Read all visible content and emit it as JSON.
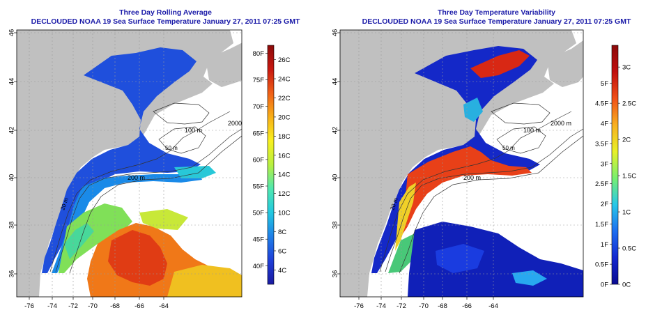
{
  "panels": [
    {
      "title": "Three Day Rolling Average",
      "subtitle": "DECLOUDED NOAA 19 Sea Surface Temperature January 27, 2011 07:25 GMT",
      "x_ticks": [
        "-76",
        "-74",
        "-72",
        "-70",
        "-68",
        "-66",
        "-64"
      ],
      "y_ticks": [
        "36",
        "38",
        "40",
        "42",
        "44",
        "46"
      ],
      "contour_labels": [
        "200 m",
        "100 m",
        "2000 m",
        "50 m",
        "20 m"
      ],
      "colorbar": {
        "type": "temperature",
        "range_c": [
          2.5,
          27.5
        ],
        "stops": [
          "#1a1aa0",
          "#1f3fd8",
          "#1f7fe8",
          "#22c8e0",
          "#4fe8b0",
          "#b8f040",
          "#f8f020",
          "#f8b018",
          "#f06018",
          "#c81810",
          "#8c0a0a"
        ],
        "left_labels": [
          "40F",
          "45F",
          "50F",
          "55F",
          "60F",
          "65F",
          "70F",
          "75F",
          "80F"
        ],
        "right_labels": [
          "4C",
          "6C",
          "8C",
          "10C",
          "12C",
          "14C",
          "16C",
          "18C",
          "20C",
          "22C",
          "24C",
          "26C"
        ]
      }
    },
    {
      "title": "Three Day Temperature Variability",
      "subtitle": "DECLOUDED NOAA 19 Sea Surface Temperature January 27, 2011 07:25 GMT",
      "x_ticks": [
        "-76",
        "-74",
        "-72",
        "-70",
        "-68",
        "-66",
        "-64"
      ],
      "y_ticks": [
        "36",
        "38",
        "40",
        "42",
        "44",
        "46"
      ],
      "contour_labels": [
        "200 m",
        "100 m",
        "2000 m",
        "50 m",
        "20 m"
      ],
      "colorbar": {
        "type": "variability",
        "range_c": [
          0,
          3.3
        ],
        "stops": [
          "#0a0a90",
          "#1428d0",
          "#1e6ef0",
          "#28c8e8",
          "#78f070",
          "#e8f028",
          "#f8b020",
          "#f05018",
          "#c01010",
          "#8c0a0a"
        ],
        "left_labels": [
          "0F",
          "0.5F",
          "1F",
          "1.5F",
          "2F",
          "2.5F",
          "3F",
          "3.5F",
          "4F",
          "4.5F",
          "5F"
        ],
        "right_labels": [
          "0C",
          "0.5C",
          "1C",
          "1.5C",
          "2C",
          "2.5C",
          "3C"
        ]
      }
    }
  ]
}
